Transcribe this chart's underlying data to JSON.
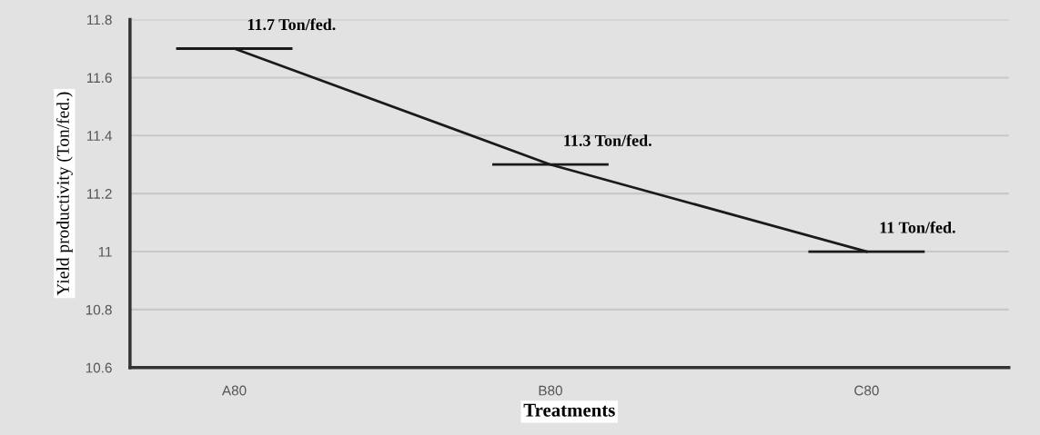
{
  "chart_data": {
    "type": "line",
    "xlabel": "Treatments",
    "ylabel": "Yield productivity (Ton/fed.)",
    "categories": [
      "A80",
      "B80",
      "C80"
    ],
    "series": [
      {
        "color": "#1a1a1a",
        "values": [
          11.7,
          11.3,
          11.0
        ],
        "value_labels": [
          "11.7 Ton/fed.",
          "11.3 Ton/fed.",
          "11 Ton/fed."
        ]
      }
    ],
    "ylim": [
      10.6,
      11.8
    ],
    "yticks": [
      10.6,
      10.8,
      {
        "value": 11,
        "label": "11"
      },
      11.2,
      11.4,
      11.6,
      11.8
    ],
    "grid": "y",
    "marker": "none",
    "line_style": "solid"
  }
}
